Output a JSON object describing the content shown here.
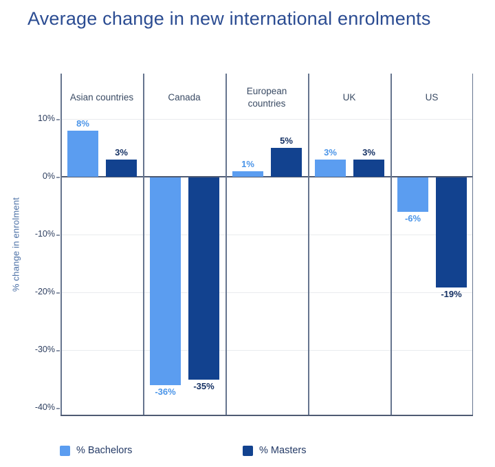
{
  "title": "Average change in new international enrolments",
  "chart_data": {
    "type": "bar",
    "title": "Average change in new international enrolments",
    "categories": [
      "Asian countries",
      "Canada",
      "European countries",
      "UK",
      "US"
    ],
    "series": [
      {
        "name": "% Bachelors",
        "values": [
          8,
          -36,
          1,
          3,
          -6
        ],
        "color": "#5b9df0",
        "label_color": "#4a94e8"
      },
      {
        "name": "% Masters",
        "values": [
          3,
          -35,
          5,
          3,
          -19
        ],
        "color": "#12428f",
        "label_color": "#143063"
      }
    ],
    "value_label_format": "{v}%",
    "xlabel": "",
    "ylabel": "% change in enrolment",
    "y_ticks": [
      {
        "label": "10%",
        "value": 10
      },
      {
        "label": "0%",
        "value": 0
      },
      {
        "label": "-10%",
        "value": -10
      },
      {
        "label": "-20%",
        "value": -20
      },
      {
        "label": "-30%",
        "value": -30
      },
      {
        "label": "-40%",
        "value": -40
      }
    ],
    "gridlines": [
      10,
      -10,
      -20,
      -30
    ],
    "ylim": [
      -41,
      18
    ],
    "grid": "horizontal",
    "panel_dividers": true,
    "legend_position": "bottom"
  },
  "colors": {
    "title": "#2b4c92",
    "bachelors": "#5b9df0",
    "masters": "#12428f",
    "axis_line": "#4e5a72"
  }
}
